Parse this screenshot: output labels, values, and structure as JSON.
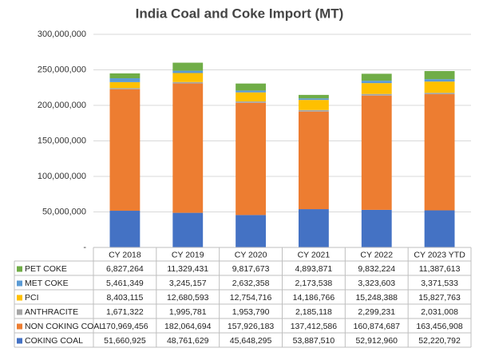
{
  "chart_data": {
    "type": "bar",
    "stacked": true,
    "title": "India Coal and Coke Import (MT)",
    "categories": [
      "CY 2018",
      "CY 2019",
      "CY 2020",
      "CY 2021",
      "CY 2022",
      "CY 2023 YTD"
    ],
    "ylim": [
      0,
      300000000
    ],
    "yticks": [
      {
        "value": 0,
        "label": "-"
      },
      {
        "value": 50000000,
        "label": "50,000,000"
      },
      {
        "value": 100000000,
        "label": "100,000,000"
      },
      {
        "value": 150000000,
        "label": "150,000,000"
      },
      {
        "value": 200000000,
        "label": "200,000,000"
      },
      {
        "value": 250000000,
        "label": "250,000,000"
      },
      {
        "value": 300000000,
        "label": "300,000,000"
      }
    ],
    "grid": true,
    "series": [
      {
        "name": "COKING COAL",
        "color": "#4472c4",
        "values": [
          51660925,
          48761629,
          45648295,
          53887510,
          52912960,
          52220792
        ],
        "value_labels": [
          "51,660,925",
          "48,761,629",
          "45,648,295",
          "53,887,510",
          "52,912,960",
          "52,220,792"
        ]
      },
      {
        "name": "NON COKING COAL",
        "color": "#ed7d31",
        "values": [
          170969456,
          182064694,
          157926183,
          137412586,
          160874687,
          163456908
        ],
        "value_labels": [
          "170,969,456",
          "182,064,694",
          "157,926,183",
          "137,412,586",
          "160,874,687",
          "163,456,908"
        ]
      },
      {
        "name": "ANTHRACITE",
        "color": "#a5a5a5",
        "values": [
          1671322,
          1995781,
          1953790,
          2185118,
          2299231,
          2031008
        ],
        "value_labels": [
          "1,671,322",
          "1,995,781",
          "1,953,790",
          "2,185,118",
          "2,299,231",
          "2,031,008"
        ]
      },
      {
        "name": "PCI",
        "color": "#ffc000",
        "values": [
          8403115,
          12680593,
          12754716,
          14186766,
          15248388,
          15827763
        ],
        "value_labels": [
          "8,403,115",
          "12,680,593",
          "12,754,716",
          "14,186,766",
          "15,248,388",
          "15,827,763"
        ]
      },
      {
        "name": "MET COKE",
        "color": "#5b9bd5",
        "values": [
          5461349,
          3245157,
          2632358,
          2173538,
          3323603,
          3371533
        ],
        "value_labels": [
          "5,461,349",
          "3,245,157",
          "2,632,358",
          "2,173,538",
          "3,323,603",
          "3,371,533"
        ]
      },
      {
        "name": "PET COKE",
        "color": "#70ad47",
        "values": [
          6827264,
          11329431,
          9817673,
          4893871,
          9832224,
          11387613
        ],
        "value_labels": [
          "6,827,264",
          "11,329,431",
          "9,817,673",
          "4,893,871",
          "9,832,224",
          "11,387,613"
        ]
      }
    ]
  }
}
